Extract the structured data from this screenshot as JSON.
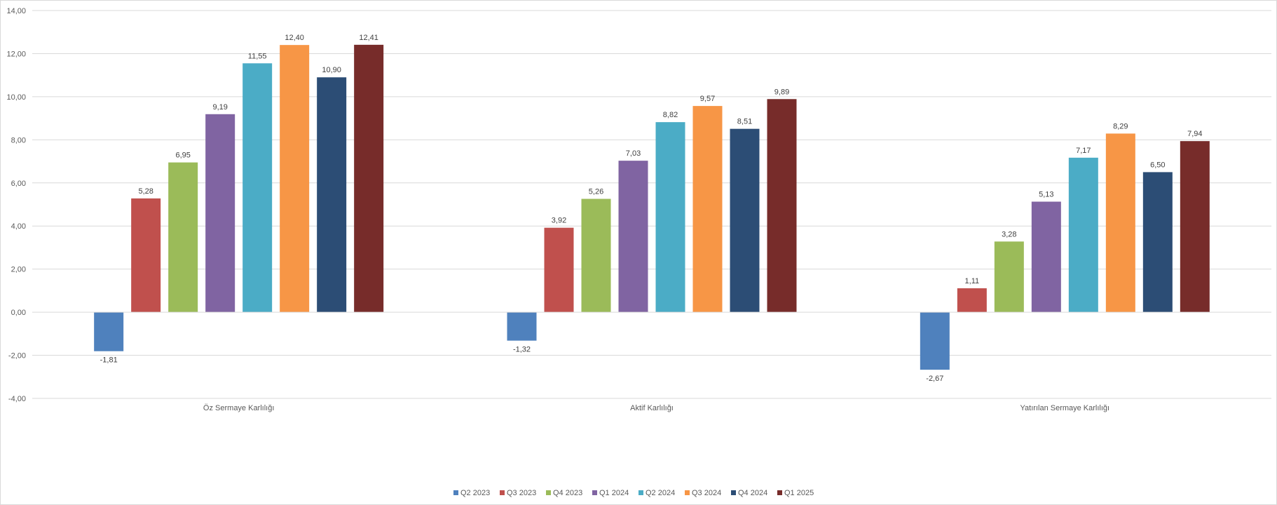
{
  "chart_data": {
    "type": "bar",
    "categories": [
      "Öz Sermaye Karlılığı",
      "Aktif Karlılığı",
      "Yatırılan Sermaye Karlılığı"
    ],
    "series": [
      {
        "name": "Q2 2023",
        "color": "#4F81BD",
        "values": [
          -1.81,
          -1.32,
          -2.67
        ],
        "labels": [
          "-1,81",
          "-1,32",
          "-2,67"
        ]
      },
      {
        "name": "Q3 2023",
        "color": "#C0504D",
        "values": [
          5.28,
          3.92,
          1.11
        ],
        "labels": [
          "5,28",
          "3,92",
          "1,11"
        ]
      },
      {
        "name": "Q4 2023",
        "color": "#9BBB59",
        "values": [
          6.95,
          5.26,
          3.28
        ],
        "labels": [
          "6,95",
          "5,26",
          "3,28"
        ]
      },
      {
        "name": "Q1 2024",
        "color": "#8064A2",
        "values": [
          9.19,
          7.03,
          5.13
        ],
        "labels": [
          "9,19",
          "7,03",
          "5,13"
        ]
      },
      {
        "name": "Q2 2024",
        "color": "#4BACC6",
        "values": [
          11.55,
          8.82,
          7.17
        ],
        "labels": [
          "11,55",
          "8,82",
          "7,17"
        ]
      },
      {
        "name": "Q3 2024",
        "color": "#F79646",
        "values": [
          12.4,
          9.57,
          8.29
        ],
        "labels": [
          "12,40",
          "9,57",
          "8,29"
        ]
      },
      {
        "name": "Q4 2024",
        "color": "#2C4D75",
        "values": [
          10.9,
          8.51,
          6.5
        ],
        "labels": [
          "10,90",
          "8,51",
          "6,50"
        ]
      },
      {
        "name": "Q1 2025",
        "color": "#772C2A",
        "values": [
          12.41,
          9.89,
          7.94
        ],
        "labels": [
          "12,41",
          "9,89",
          "7,94"
        ]
      }
    ],
    "ylim": [
      -4,
      14
    ],
    "yticks": [
      14,
      12,
      10,
      8,
      6,
      4,
      2,
      0,
      -2,
      -4
    ],
    "ytick_labels": [
      "14,00",
      "12,00",
      "10,00",
      "8,00",
      "6,00",
      "4,00",
      "2,00",
      "0,00",
      "-2,00",
      "-4,00"
    ],
    "grid": true,
    "legend_position": "bottom",
    "title": "",
    "xlabel": "",
    "ylabel": ""
  }
}
